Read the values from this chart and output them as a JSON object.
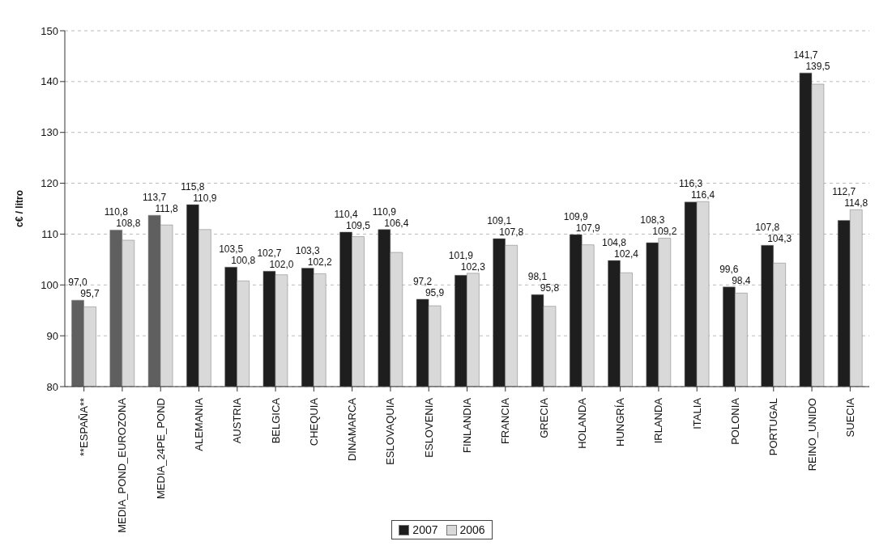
{
  "chart_data": {
    "type": "bar",
    "ylabel": "c€ / litro",
    "categories": [
      "**ESPAÑA**",
      "MEDIA_POND_EUROZONA",
      "MEDIA_24PE_POND",
      "ALEMANIA",
      "AUSTRIA",
      "BELGICA",
      "CHEQUIA",
      "DINAMARCA",
      "ESLOVAQUIA",
      "ESLOVENIA",
      "FINLANDIA",
      "FRANCIA",
      "GRECIA",
      "HOLANDA",
      "HUNGRÍA",
      "IRLANDA",
      "ITALIA",
      "POLONIA",
      "PORTUGAL",
      "REINO_UNIDO",
      "SUECIA"
    ],
    "series": [
      {
        "name": "2007",
        "color": "#1e1e1e",
        "colors": [
          "#5f5f5f",
          "#5f5f5f",
          "#5f5f5f",
          "#1e1e1e",
          "#1e1e1e",
          "#1e1e1e",
          "#1e1e1e",
          "#1e1e1e",
          "#1e1e1e",
          "#1e1e1e",
          "#1e1e1e",
          "#1e1e1e",
          "#1e1e1e",
          "#1e1e1e",
          "#1e1e1e",
          "#1e1e1e",
          "#1e1e1e",
          "#1e1e1e",
          "#1e1e1e",
          "#1e1e1e",
          "#1e1e1e"
        ],
        "values": [
          97.0,
          110.8,
          113.7,
          115.8,
          103.5,
          102.7,
          103.3,
          110.4,
          110.9,
          97.2,
          101.9,
          109.1,
          98.1,
          109.9,
          104.8,
          108.3,
          116.3,
          99.6,
          107.8,
          141.7,
          112.7
        ],
        "value_labels": [
          "97,0",
          "110,8",
          "113,7",
          "115,8",
          "103,5",
          "102,7",
          "103,3",
          "110,4",
          "110,9",
          "97,2",
          "101,9",
          "109,1",
          "98,1",
          "109,9",
          "104,8",
          "108,3",
          "116,3",
          "99,6",
          "107,8",
          "141,7",
          "112,7"
        ]
      },
      {
        "name": "2006",
        "color": "#d9d9d9",
        "values": [
          95.7,
          108.8,
          111.8,
          110.9,
          100.8,
          102.0,
          102.2,
          109.5,
          106.4,
          95.9,
          102.3,
          107.8,
          95.8,
          107.9,
          102.4,
          109.2,
          116.4,
          98.4,
          104.3,
          139.5,
          114.8
        ],
        "value_labels": [
          "95,7",
          "108,8",
          "111,8",
          "110,9",
          "100,8",
          "102,0",
          "102,2",
          "109,5",
          "106,4",
          "95,9",
          "102,3",
          "107,8",
          "95,8",
          "107,9",
          "102,4",
          "109,2",
          "116,4",
          "98,4",
          "104,3",
          "139,5",
          "114,8"
        ]
      }
    ],
    "ylim": [
      80,
      150
    ],
    "yticks": [
      80,
      90,
      100,
      110,
      120,
      130,
      140,
      150
    ],
    "grid": "y",
    "legend": "bottom"
  }
}
